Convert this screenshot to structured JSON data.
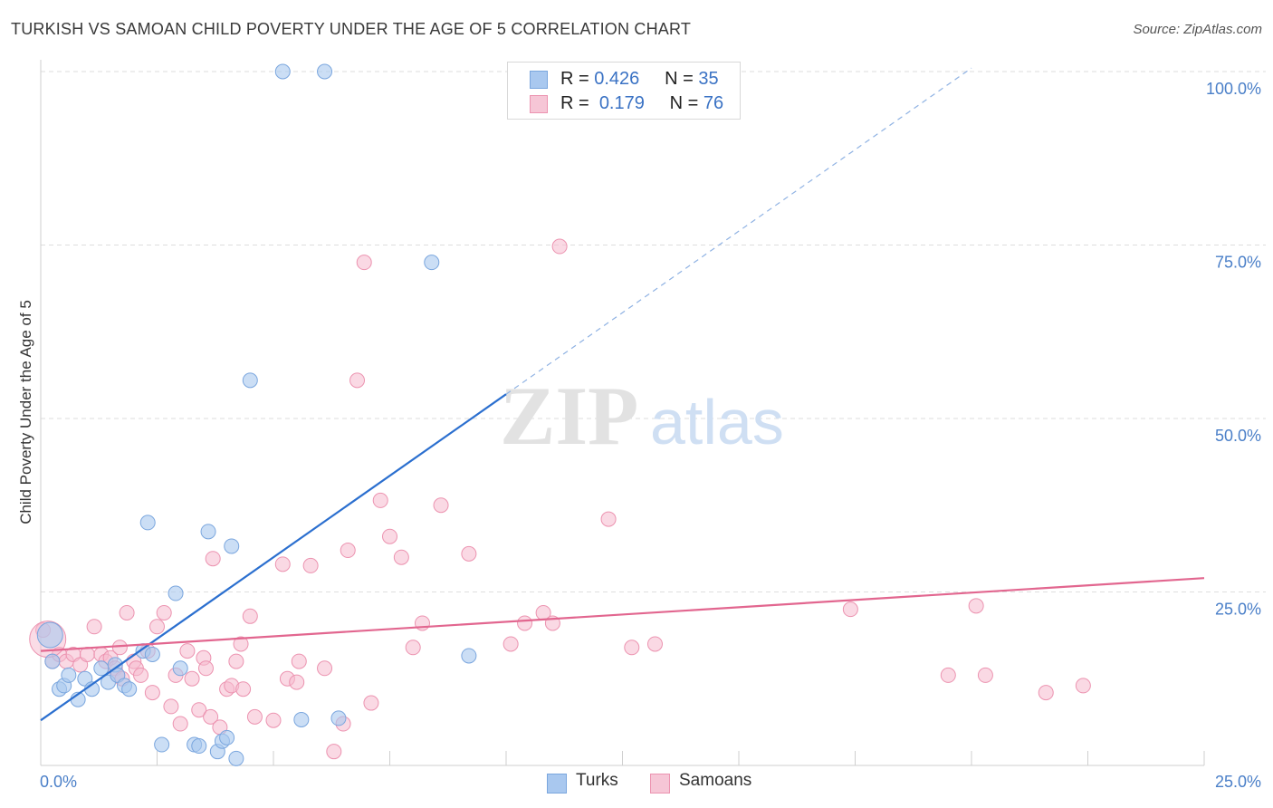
{
  "header": {
    "title": "TURKISH VS SAMOAN CHILD POVERTY UNDER THE AGE OF 5 CORRELATION CHART",
    "source": "Source: ZipAtlas.com"
  },
  "watermark": {
    "zip": "ZIP",
    "atlas": "atlas"
  },
  "legend_top": {
    "turks": {
      "r_label": "R =",
      "r_value": "0.426",
      "n_label": "N =",
      "n_value": "35"
    },
    "samoans": {
      "r_label": "R =",
      "r_value": "0.179",
      "n_label": "N =",
      "n_value": "76"
    }
  },
  "legend_bottom": {
    "turks": "Turks",
    "samoans": "Samoans"
  },
  "colors": {
    "turks_fill": "#a9c8ef",
    "turks_stroke": "#7aa6de",
    "turks_line": "#2b6fcf",
    "samoans_fill": "#f6b9cd",
    "samoans_stroke": "#ec93b0",
    "samoans_line": "#e2668f",
    "tick_label": "#4a7fc8",
    "grid": "#dedede"
  },
  "chart_data": {
    "type": "scatter",
    "title": "TURKISH VS SAMOAN CHILD POVERTY UNDER THE AGE OF 5 CORRELATION CHART",
    "xlabel": "",
    "ylabel": "Child Poverty Under the Age of 5",
    "xlim": [
      0,
      25
    ],
    "ylim": [
      0,
      102
    ],
    "x_tick_labels": [
      "0.0%",
      "25.0%"
    ],
    "y_ticks": [
      25,
      50,
      75,
      100
    ],
    "y_tick_labels": [
      "25.0%",
      "50.0%",
      "75.0%",
      "100.0%"
    ],
    "grid": true,
    "legend_placement": "top-center",
    "series": [
      {
        "name": "Turks",
        "r": 0.426,
        "n": 35,
        "trend": {
          "x0": 0,
          "y0": 6.5,
          "x1": 10,
          "y1": 53.5,
          "dash_to_x": 20
        },
        "points": [
          [
            0.2,
            18.8
          ],
          [
            0.25,
            15.0
          ],
          [
            0.4,
            11.0
          ],
          [
            0.5,
            11.5
          ],
          [
            0.6,
            13.0
          ],
          [
            0.8,
            9.5
          ],
          [
            0.95,
            12.5
          ],
          [
            1.1,
            11.0
          ],
          [
            1.3,
            14.0
          ],
          [
            1.45,
            12.0
          ],
          [
            1.6,
            14.5
          ],
          [
            1.65,
            13.0
          ],
          [
            1.8,
            11.5
          ],
          [
            1.9,
            11.0
          ],
          [
            2.2,
            16.5
          ],
          [
            2.3,
            35.0
          ],
          [
            2.4,
            16.0
          ],
          [
            2.6,
            3.0
          ],
          [
            2.9,
            24.8
          ],
          [
            3.0,
            14.0
          ],
          [
            3.3,
            3.0
          ],
          [
            3.4,
            2.8
          ],
          [
            3.6,
            33.7
          ],
          [
            3.8,
            2.0
          ],
          [
            3.9,
            3.5
          ],
          [
            4.0,
            4.0
          ],
          [
            4.1,
            31.6
          ],
          [
            4.2,
            1.0
          ],
          [
            4.5,
            55.5
          ],
          [
            5.2,
            100.0
          ],
          [
            5.6,
            6.6
          ],
          [
            6.1,
            100.0
          ],
          [
            6.4,
            6.8
          ],
          [
            8.4,
            72.5
          ],
          [
            9.2,
            15.8
          ]
        ]
      },
      {
        "name": "Samoans",
        "r": 0.179,
        "n": 76,
        "trend": {
          "x0": 0,
          "y0": 16.5,
          "x1": 25,
          "y1": 27.0
        },
        "points": [
          [
            0.05,
            19.5
          ],
          [
            0.25,
            15.0
          ],
          [
            0.4,
            16.0
          ],
          [
            0.55,
            15.0
          ],
          [
            0.7,
            16.0
          ],
          [
            0.85,
            14.5
          ],
          [
            1.0,
            16.0
          ],
          [
            1.15,
            20.0
          ],
          [
            1.3,
            16.0
          ],
          [
            1.4,
            15.0
          ],
          [
            1.5,
            15.5
          ],
          [
            1.6,
            14.0
          ],
          [
            1.65,
            13.0
          ],
          [
            1.75,
            12.5
          ],
          [
            1.7,
            17.0
          ],
          [
            1.85,
            22.0
          ],
          [
            2.0,
            15.0
          ],
          [
            2.05,
            14.0
          ],
          [
            2.15,
            13.0
          ],
          [
            2.3,
            16.5
          ],
          [
            2.4,
            10.5
          ],
          [
            2.5,
            20.0
          ],
          [
            2.65,
            22.0
          ],
          [
            2.8,
            8.5
          ],
          [
            2.9,
            13.0
          ],
          [
            3.0,
            6.0
          ],
          [
            3.15,
            16.5
          ],
          [
            3.25,
            12.5
          ],
          [
            3.4,
            8.0
          ],
          [
            3.5,
            15.5
          ],
          [
            3.55,
            14.0
          ],
          [
            3.65,
            7.0
          ],
          [
            3.7,
            29.8
          ],
          [
            3.85,
            5.5
          ],
          [
            4.0,
            11.0
          ],
          [
            4.1,
            11.5
          ],
          [
            4.2,
            15.0
          ],
          [
            4.3,
            17.5
          ],
          [
            4.35,
            11.0
          ],
          [
            4.5,
            21.5
          ],
          [
            4.6,
            7.0
          ],
          [
            5.0,
            6.5
          ],
          [
            5.2,
            29.0
          ],
          [
            5.3,
            12.5
          ],
          [
            5.5,
            12.0
          ],
          [
            5.55,
            15.0
          ],
          [
            5.8,
            28.8
          ],
          [
            6.1,
            14.0
          ],
          [
            6.3,
            2.0
          ],
          [
            6.5,
            6.0
          ],
          [
            6.6,
            31.0
          ],
          [
            6.8,
            55.5
          ],
          [
            6.95,
            72.5
          ],
          [
            7.1,
            9.0
          ],
          [
            7.3,
            38.2
          ],
          [
            7.5,
            33.0
          ],
          [
            7.75,
            30.0
          ],
          [
            8.0,
            17.0
          ],
          [
            8.2,
            20.5
          ],
          [
            8.6,
            37.5
          ],
          [
            9.2,
            30.5
          ],
          [
            10.1,
            17.5
          ],
          [
            10.4,
            20.5
          ],
          [
            10.8,
            22.0
          ],
          [
            11.0,
            20.5
          ],
          [
            11.15,
            74.8
          ],
          [
            12.2,
            35.5
          ],
          [
            12.7,
            17.0
          ],
          [
            13.2,
            17.5
          ],
          [
            17.4,
            22.5
          ],
          [
            19.5,
            13.0
          ],
          [
            20.1,
            23.0
          ],
          [
            20.3,
            13.0
          ],
          [
            21.6,
            10.5
          ],
          [
            22.4,
            11.5
          ],
          [
            0.15,
            18.2
          ]
        ]
      }
    ]
  }
}
